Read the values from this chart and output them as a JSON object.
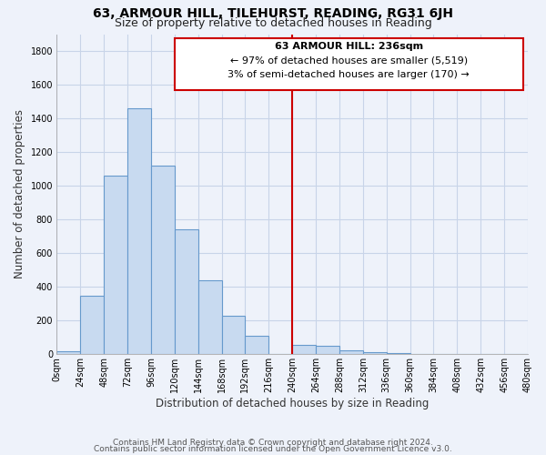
{
  "title": "63, ARMOUR HILL, TILEHURST, READING, RG31 6JH",
  "subtitle": "Size of property relative to detached houses in Reading",
  "xlabel": "Distribution of detached houses by size in Reading",
  "ylabel": "Number of detached properties",
  "footnote1": "Contains HM Land Registry data © Crown copyright and database right 2024.",
  "footnote2": "Contains public sector information licensed under the Open Government Licence v3.0.",
  "bin_edges": [
    0,
    24,
    48,
    72,
    96,
    120,
    144,
    168,
    192,
    216,
    240,
    264,
    288,
    312,
    336,
    360,
    384,
    408,
    432,
    456,
    480
  ],
  "bar_heights": [
    20,
    350,
    1060,
    1460,
    1120,
    740,
    440,
    230,
    110,
    0,
    55,
    50,
    25,
    15,
    5,
    0,
    0,
    0,
    0,
    0
  ],
  "bar_color": "#c8daf0",
  "bar_edge_color": "#6699cc",
  "vline_x": 240,
  "vline_color": "#cc0000",
  "annotation_title": "63 ARMOUR HILL: 236sqm",
  "annotation_line1": "← 97% of detached houses are smaller (5,519)",
  "annotation_line2": "3% of semi-detached houses are larger (170) →",
  "annotation_box_color": "#cc0000",
  "annotation_fill": "#ffffff",
  "xlim": [
    0,
    480
  ],
  "ylim": [
    0,
    1900
  ],
  "yticks": [
    0,
    200,
    400,
    600,
    800,
    1000,
    1200,
    1400,
    1600,
    1800
  ],
  "xtick_labels": [
    "0sqm",
    "24sqm",
    "48sqm",
    "72sqm",
    "96sqm",
    "120sqm",
    "144sqm",
    "168sqm",
    "192sqm",
    "216sqm",
    "240sqm",
    "264sqm",
    "288sqm",
    "312sqm",
    "336sqm",
    "360sqm",
    "384sqm",
    "408sqm",
    "432sqm",
    "456sqm",
    "480sqm"
  ],
  "background_color": "#eef2fa",
  "grid_color": "#c8d4e8",
  "title_fontsize": 10,
  "subtitle_fontsize": 9,
  "axis_label_fontsize": 8.5,
  "tick_fontsize": 7,
  "annotation_fontsize": 8,
  "footnote_fontsize": 6.5
}
